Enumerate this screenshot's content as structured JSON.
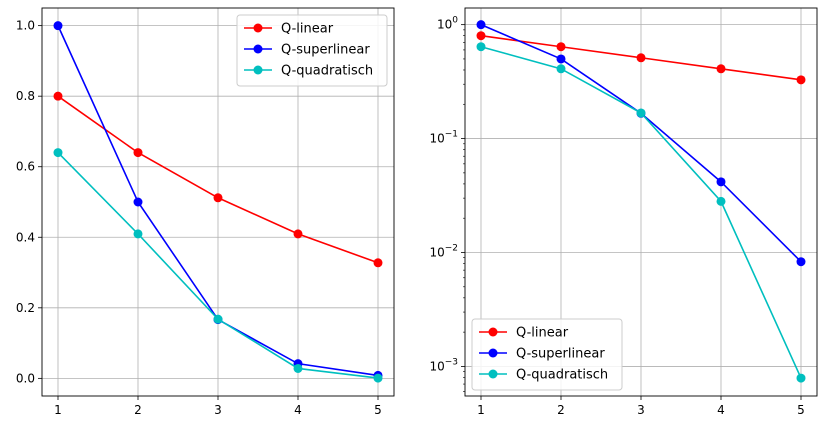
{
  "chart_data": [
    {
      "type": "line",
      "x": [
        1,
        2,
        3,
        4,
        5
      ],
      "xticks": [
        1,
        2,
        3,
        4,
        5
      ],
      "xlim": [
        0.8,
        5.2
      ],
      "ylim": [
        -0.05,
        1.05
      ],
      "yscale": "linear",
      "yticks": [
        0.0,
        0.2,
        0.4,
        0.6,
        0.8,
        1.0
      ],
      "ytick_labels": [
        "0.0",
        "0.2",
        "0.4",
        "0.6",
        "0.8",
        "1.0"
      ],
      "grid": true,
      "legend_position": "top-right",
      "series": [
        {
          "name": "Q-linear",
          "color": "#ff0000",
          "values": [
            0.8,
            0.64,
            0.512,
            0.4096,
            0.32768
          ]
        },
        {
          "name": "Q-superlinear",
          "color": "#0000ff",
          "values": [
            1.0,
            0.5,
            0.1667,
            0.0417,
            0.0083
          ]
        },
        {
          "name": "Q-quadratisch",
          "color": "#00bfbf",
          "values": [
            0.64,
            0.4096,
            0.1678,
            0.0281,
            0.00079
          ]
        }
      ]
    },
    {
      "type": "line",
      "x": [
        1,
        2,
        3,
        4,
        5
      ],
      "xticks": [
        1,
        2,
        3,
        4,
        5
      ],
      "xlim": [
        0.8,
        5.2
      ],
      "ylim": [
        0.00055,
        1.4
      ],
      "yscale": "log",
      "yticks": [
        0.001,
        0.01,
        0.1,
        1
      ],
      "ytick_labels": [
        {
          "base": "10",
          "exp": "−3"
        },
        {
          "base": "10",
          "exp": "−2"
        },
        {
          "base": "10",
          "exp": "−1"
        },
        {
          "base": "10",
          "exp": "0"
        }
      ],
      "grid": true,
      "legend_position": "bottom-left",
      "series": [
        {
          "name": "Q-linear",
          "color": "#ff0000",
          "values": [
            0.8,
            0.64,
            0.512,
            0.4096,
            0.32768
          ]
        },
        {
          "name": "Q-superlinear",
          "color": "#0000ff",
          "values": [
            1.0,
            0.5,
            0.1667,
            0.0417,
            0.0083
          ]
        },
        {
          "name": "Q-quadratisch",
          "color": "#00bfbf",
          "values": [
            0.64,
            0.4096,
            0.1678,
            0.0281,
            0.00079
          ]
        }
      ]
    }
  ]
}
